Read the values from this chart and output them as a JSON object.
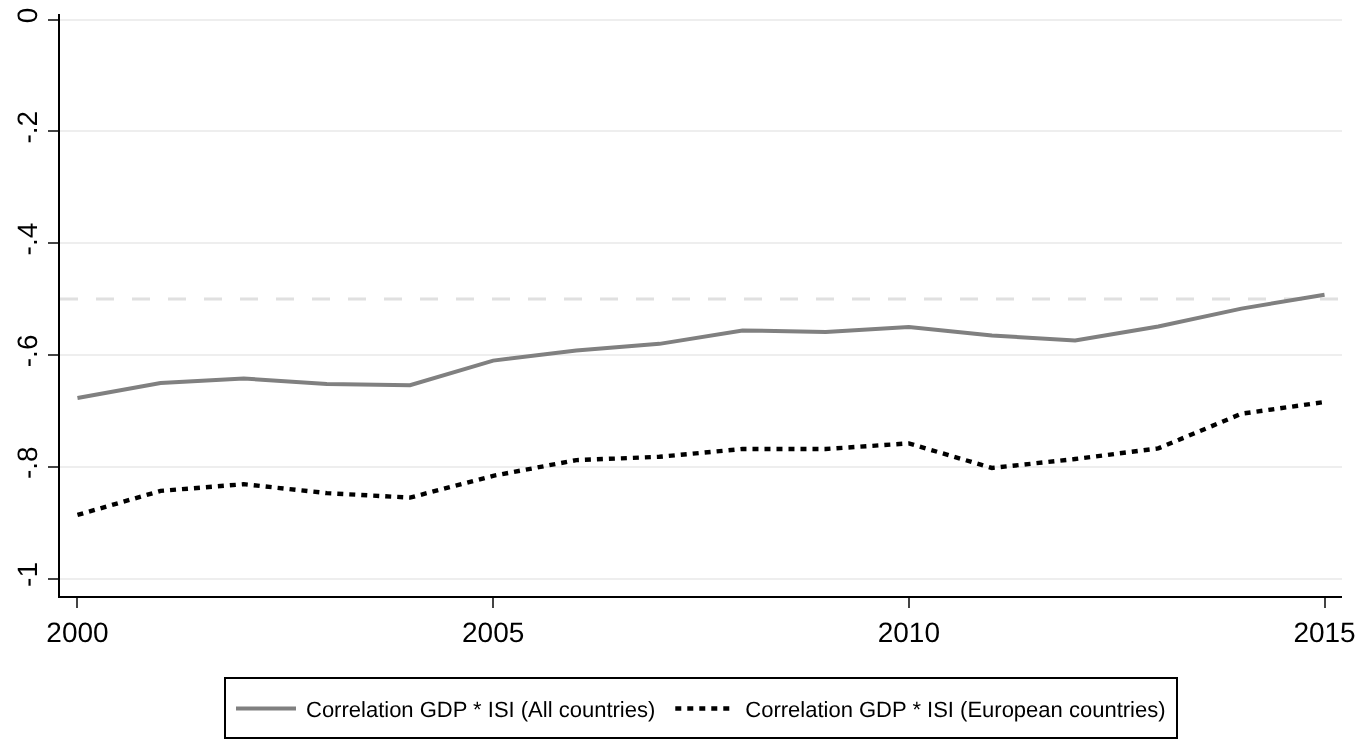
{
  "chart_data": {
    "type": "line",
    "x": [
      2000,
      2001,
      2002,
      2003,
      2004,
      2005,
      2006,
      2007,
      2008,
      2009,
      2010,
      2011,
      2012,
      2013,
      2014,
      2015
    ],
    "series": [
      {
        "name": "Correlation GDP * ISI (All countries)",
        "color": "#808080",
        "line_style": "solid",
        "values": [
          -0.677,
          -0.65,
          -0.642,
          -0.652,
          -0.654,
          -0.61,
          -0.592,
          -0.58,
          -0.556,
          -0.559,
          -0.55,
          -0.565,
          -0.574,
          -0.549,
          -0.517,
          -0.492
        ]
      },
      {
        "name": "Correlation GDP * ISI (European countries)",
        "color": "#000000",
        "line_style": "dotted",
        "values": [
          -0.886,
          -0.843,
          -0.831,
          -0.847,
          -0.855,
          -0.816,
          -0.788,
          -0.782,
          -0.768,
          -0.768,
          -0.758,
          -0.802,
          -0.786,
          -0.767,
          -0.705,
          -0.684
        ]
      }
    ],
    "xlim": [
      1999.79,
      2015.21
    ],
    "xticks": [
      2000,
      2005,
      2010,
      2015
    ],
    "ylim": [
      -1.031,
      0.01
    ],
    "yticks": [
      {
        "value": -1,
        "label": "-1"
      },
      {
        "value": -0.8,
        "label": "-.8"
      },
      {
        "value": -0.6,
        "label": "-.6"
      },
      {
        "value": -0.4,
        "label": "-.4"
      },
      {
        "value": -0.2,
        "label": "-.2"
      },
      0
    ],
    "ref_lines": [
      {
        "axis": "y",
        "value": -0.5,
        "color": "#e0e0e0",
        "line_style": "dashed"
      }
    ],
    "grid": "y",
    "legend": "bottom",
    "marker": "none"
  }
}
